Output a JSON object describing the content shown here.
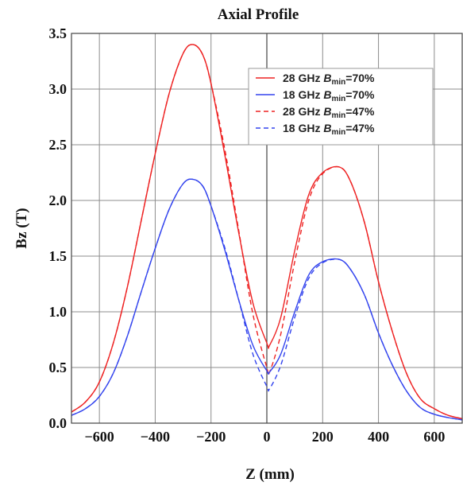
{
  "chart_data": {
    "type": "line",
    "title": "Axial Profile",
    "xlabel": "Z (mm)",
    "ylabel": "Bz (T)",
    "xlim": [
      -700,
      700
    ],
    "ylim": [
      0,
      3.5
    ],
    "x_ticks": [
      -600,
      -400,
      -200,
      0,
      200,
      400,
      600
    ],
    "x_tick_labels": [
      "−600",
      "−400",
      "−200",
      "0",
      "200",
      "400",
      "600"
    ],
    "y_ticks": [
      0.0,
      0.5,
      1.0,
      1.5,
      2.0,
      2.5,
      3.0,
      3.5
    ],
    "y_tick_labels": [
      "0.0",
      "0.5",
      "1.0",
      "1.5",
      "2.0",
      "2.5",
      "3.0",
      "3.5"
    ],
    "grid": true,
    "legend_position": "top-right",
    "series": [
      {
        "name": "28 GHz B_min=70%",
        "legend": {
          "prefix": "28 GHz ",
          "var": "B",
          "sub": "min",
          "suffix": "=70%"
        },
        "color": "#ee2222",
        "dash": "solid",
        "x": [
          -700,
          -650,
          -600,
          -550,
          -500,
          -450,
          -400,
          -350,
          -300,
          -265,
          -230,
          -200,
          -150,
          -100,
          -50,
          0,
          10,
          50,
          100,
          150,
          200,
          260,
          300,
          350,
          400,
          450,
          500,
          550,
          600,
          650,
          700
        ],
        "y": [
          0.1,
          0.19,
          0.37,
          0.72,
          1.22,
          1.82,
          2.42,
          2.96,
          3.32,
          3.4,
          3.31,
          3.05,
          2.4,
          1.7,
          1.08,
          0.72,
          0.7,
          0.95,
          1.55,
          2.05,
          2.25,
          2.3,
          2.17,
          1.8,
          1.27,
          0.82,
          0.45,
          0.22,
          0.13,
          0.07,
          0.04
        ]
      },
      {
        "name": "18 GHz B_min=70%",
        "legend": {
          "prefix": "18 GHz ",
          "var": "B",
          "sub": "min",
          "suffix": "=70%"
        },
        "color": "#3344ee",
        "dash": "solid",
        "x": [
          -700,
          -650,
          -600,
          -550,
          -500,
          -450,
          -400,
          -350,
          -300,
          -265,
          -230,
          -200,
          -150,
          -100,
          -50,
          0,
          10,
          50,
          100,
          150,
          200,
          260,
          300,
          350,
          400,
          450,
          500,
          550,
          600,
          650,
          700
        ],
        "y": [
          0.07,
          0.13,
          0.24,
          0.45,
          0.78,
          1.18,
          1.57,
          1.92,
          2.15,
          2.19,
          2.13,
          1.95,
          1.55,
          1.1,
          0.7,
          0.47,
          0.46,
          0.62,
          1.0,
          1.33,
          1.45,
          1.47,
          1.38,
          1.15,
          0.81,
          0.52,
          0.29,
          0.14,
          0.08,
          0.05,
          0.03
        ]
      },
      {
        "name": "28 GHz B_min=47%",
        "legend": {
          "prefix": "28 GHz ",
          "var": "B",
          "sub": "min",
          "suffix": "=47%"
        },
        "color": "#ee2222",
        "dash": "dashed",
        "x": [
          -700,
          -650,
          -600,
          -550,
          -500,
          -450,
          -400,
          -350,
          -300,
          -265,
          -230,
          -200,
          -150,
          -100,
          -50,
          0,
          10,
          50,
          100,
          150,
          200,
          260,
          300,
          350,
          400,
          450,
          500,
          550,
          600,
          650,
          700
        ],
        "y": [
          0.1,
          0.19,
          0.37,
          0.72,
          1.22,
          1.82,
          2.42,
          2.96,
          3.32,
          3.4,
          3.31,
          3.05,
          2.45,
          1.72,
          0.98,
          0.5,
          0.46,
          0.8,
          1.45,
          2.0,
          2.24,
          2.3,
          2.17,
          1.8,
          1.27,
          0.82,
          0.45,
          0.22,
          0.13,
          0.07,
          0.04
        ]
      },
      {
        "name": "18 GHz B_min=47%",
        "legend": {
          "prefix": "18 GHz ",
          "var": "B",
          "sub": "min",
          "suffix": "=47%"
        },
        "color": "#3344ee",
        "dash": "dashed",
        "x": [
          -700,
          -650,
          -600,
          -550,
          -500,
          -450,
          -400,
          -350,
          -300,
          -265,
          -230,
          -200,
          -150,
          -100,
          -50,
          0,
          10,
          50,
          100,
          150,
          200,
          260,
          300,
          350,
          400,
          450,
          500,
          550,
          600,
          650,
          700
        ],
        "y": [
          0.07,
          0.13,
          0.24,
          0.45,
          0.78,
          1.18,
          1.57,
          1.92,
          2.15,
          2.19,
          2.13,
          1.95,
          1.57,
          1.1,
          0.62,
          0.33,
          0.31,
          0.52,
          0.95,
          1.3,
          1.44,
          1.47,
          1.38,
          1.15,
          0.81,
          0.52,
          0.29,
          0.14,
          0.08,
          0.05,
          0.03
        ]
      }
    ]
  }
}
